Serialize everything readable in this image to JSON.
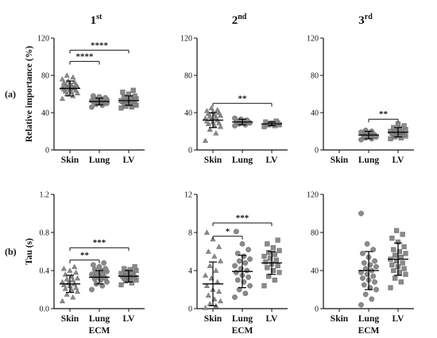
{
  "chart_data": {
    "type": "scatter",
    "rows": [
      {
        "label": "(a)",
        "ylabel": "Relative importance (%)",
        "xlabel": ""
      },
      {
        "label": "(b)",
        "ylabel": "Tau (s)",
        "xlabel": "ECM"
      }
    ],
    "columns": [
      {
        "title": "1",
        "sup": "st"
      },
      {
        "title": "2",
        "sup": "nd"
      },
      {
        "title": "3",
        "sup": "rd"
      }
    ],
    "categories": [
      "Skin",
      "Lung",
      "LV"
    ],
    "panels": [
      {
        "row": 0,
        "col": 0,
        "ylim": [
          0,
          120
        ],
        "yticks": [
          "0",
          "40",
          "80",
          "120"
        ],
        "ytick_values": [
          0,
          40,
          80,
          120
        ],
        "series": [
          {
            "category": "Skin",
            "marker": "triangle",
            "mean": 66,
            "sd": 8,
            "values": [
              55,
              58,
              60,
              61,
              62,
              63,
              64,
              64,
              65,
              66,
              66,
              67,
              67,
              68,
              68,
              69,
              70,
              70,
              71,
              72,
              73,
              74,
              76,
              78,
              80
            ]
          },
          {
            "category": "Lung",
            "marker": "circle",
            "mean": 52,
            "sd": 3.5,
            "values": [
              46,
              48,
              49,
              50,
              50,
              51,
              51,
              52,
              52,
              52,
              53,
              53,
              53,
              54,
              54,
              55,
              55,
              56,
              57,
              58
            ]
          },
          {
            "category": "LV",
            "marker": "square",
            "mean": 53,
            "sd": 5,
            "values": [
              45,
              46,
              47,
              48,
              49,
              50,
              50,
              51,
              52,
              52,
              53,
              53,
              54,
              54,
              55,
              56,
              57,
              58,
              60,
              62,
              64
            ]
          }
        ],
        "significance": [
          {
            "from": 0,
            "to": 1,
            "y": 95,
            "label": "****"
          },
          {
            "from": 0,
            "to": 2,
            "y": 107,
            "label": "****"
          }
        ]
      },
      {
        "row": 0,
        "col": 1,
        "ylim": [
          0,
          120
        ],
        "yticks": [
          "0",
          "40",
          "80",
          "120"
        ],
        "ytick_values": [
          0,
          40,
          80,
          120
        ],
        "series": [
          {
            "category": "Skin",
            "marker": "triangle",
            "mean": 32,
            "sd": 8,
            "values": [
              10,
              18,
              22,
              25,
              26,
              28,
              29,
              30,
              31,
              32,
              33,
              34,
              35,
              36,
              37,
              38,
              39,
              40,
              41,
              42,
              43,
              45
            ]
          },
          {
            "category": "Lung",
            "marker": "circle",
            "mean": 30,
            "sd": 3,
            "values": [
              26,
              27,
              28,
              29,
              29,
              30,
              30,
              31,
              31,
              32,
              33,
              34
            ]
          },
          {
            "category": "LV",
            "marker": "square",
            "mean": 28,
            "sd": 2,
            "values": [
              25,
              26,
              27,
              27,
              28,
              28,
              29,
              29,
              30,
              31
            ]
          }
        ],
        "significance": [
          {
            "from": 0,
            "to": 2,
            "y": 50,
            "label": "**"
          }
        ]
      },
      {
        "row": 0,
        "col": 2,
        "ylim": [
          0,
          120
        ],
        "yticks": [
          "0",
          "40",
          "80",
          "120"
        ],
        "ytick_values": [
          0,
          40,
          80,
          120
        ],
        "series": [
          {
            "category": "Skin",
            "marker": "triangle",
            "mean": null,
            "sd": null,
            "values": []
          },
          {
            "category": "Lung",
            "marker": "circle",
            "mean": 16,
            "sd": 4,
            "values": [
              11,
              12,
              13,
              14,
              15,
              15,
              16,
              16,
              17,
              17,
              18,
              19,
              20,
              21
            ]
          },
          {
            "category": "LV",
            "marker": "square",
            "mean": 19,
            "sd": 5,
            "values": [
              12,
              13,
              14,
              15,
              16,
              17,
              17,
              18,
              18,
              19,
              19,
              20,
              20,
              21,
              22,
              23,
              24,
              26,
              28
            ]
          }
        ],
        "significance": [
          {
            "from": 1,
            "to": 2,
            "y": 33,
            "label": "**"
          }
        ]
      },
      {
        "row": 1,
        "col": 0,
        "ylim": [
          0,
          1.2
        ],
        "yticks": [
          "0.0",
          "0.4",
          "0.8",
          "1.2"
        ],
        "ytick_values": [
          0,
          0.4,
          0.8,
          1.2
        ],
        "series": [
          {
            "category": "Skin",
            "marker": "triangle",
            "mean": 0.26,
            "sd": 0.09,
            "values": [
              0.08,
              0.12,
              0.15,
              0.18,
              0.2,
              0.21,
              0.22,
              0.24,
              0.25,
              0.26,
              0.27,
              0.28,
              0.3,
              0.31,
              0.32,
              0.34,
              0.36,
              0.38,
              0.4,
              0.42,
              0.44
            ]
          },
          {
            "category": "Lung",
            "marker": "circle",
            "mean": 0.33,
            "sd": 0.07,
            "values": [
              0.2,
              0.24,
              0.26,
              0.28,
              0.3,
              0.31,
              0.32,
              0.33,
              0.34,
              0.34,
              0.35,
              0.36,
              0.37,
              0.38,
              0.39,
              0.4,
              0.41,
              0.42,
              0.44,
              0.46,
              0.48
            ]
          },
          {
            "category": "LV",
            "marker": "square",
            "mean": 0.34,
            "sd": 0.06,
            "values": [
              0.25,
              0.27,
              0.29,
              0.3,
              0.31,
              0.32,
              0.33,
              0.34,
              0.34,
              0.35,
              0.36,
              0.37,
              0.38,
              0.39,
              0.4,
              0.41,
              0.42,
              0.44
            ]
          }
        ],
        "significance": [
          {
            "from": 0,
            "to": 1,
            "y": 0.51,
            "label": "**"
          },
          {
            "from": 0,
            "to": 2,
            "y": 0.64,
            "label": "***"
          }
        ]
      },
      {
        "row": 1,
        "col": 1,
        "ylim": [
          0,
          12
        ],
        "yticks": [
          "0",
          "4",
          "8",
          "12"
        ],
        "ytick_values": [
          0,
          4,
          8,
          12
        ],
        "series": [
          {
            "category": "Skin",
            "marker": "triangle",
            "mean": 2.6,
            "sd": 2.3,
            "values": [
              0.1,
              0.3,
              0.5,
              0.8,
              1.0,
              1.4,
              1.8,
              2.0,
              2.4,
              2.8,
              3.2,
              3.5,
              4.0,
              4.5,
              5.0,
              5.5,
              6.0,
              6.5,
              7.3,
              8.0
            ]
          },
          {
            "category": "Lung",
            "marker": "circle",
            "mean": 3.9,
            "sd": 1.7,
            "values": [
              1.2,
              1.6,
              2.0,
              2.4,
              2.8,
              3.0,
              3.3,
              3.5,
              3.8,
              4.0,
              4.2,
              4.5,
              4.8,
              5.0,
              5.2,
              5.5,
              5.8,
              6.2,
              6.8,
              8.1
            ]
          },
          {
            "category": "LV",
            "marker": "square",
            "mean": 4.8,
            "sd": 1.2,
            "values": [
              2.4,
              3.0,
              3.4,
              3.8,
              4.0,
              4.3,
              4.5,
              4.7,
              4.9,
              5.1,
              5.3,
              5.5,
              5.7,
              5.9,
              6.1,
              6.4,
              6.8,
              7.2
            ]
          }
        ],
        "significance": [
          {
            "from": 0,
            "to": 1,
            "y": 7.6,
            "label": "*"
          },
          {
            "from": 0,
            "to": 2,
            "y": 9.0,
            "label": "***"
          }
        ]
      },
      {
        "row": 1,
        "col": 2,
        "ylim": [
          0,
          120
        ],
        "yticks": [
          "0",
          "40",
          "80",
          "120"
        ],
        "ytick_values": [
          0,
          40,
          80,
          120
        ],
        "series": [
          {
            "category": "Skin",
            "marker": "triangle",
            "mean": null,
            "sd": null,
            "values": []
          },
          {
            "category": "Lung",
            "marker": "circle",
            "mean": 40,
            "sd": 20,
            "values": [
              4,
              10,
              15,
              20,
              22,
              25,
              28,
              30,
              32,
              34,
              36,
              38,
              40,
              42,
              44,
              46,
              48,
              50,
              54,
              58,
              62,
              68,
              100
            ]
          },
          {
            "category": "LV",
            "marker": "square",
            "mean": 52,
            "sd": 17,
            "values": [
              22,
              28,
              32,
              36,
              38,
              40,
              42,
              44,
              46,
              48,
              50,
              52,
              54,
              56,
              58,
              60,
              62,
              65,
              70,
              74,
              78,
              82
            ]
          }
        ],
        "significance": []
      }
    ]
  }
}
